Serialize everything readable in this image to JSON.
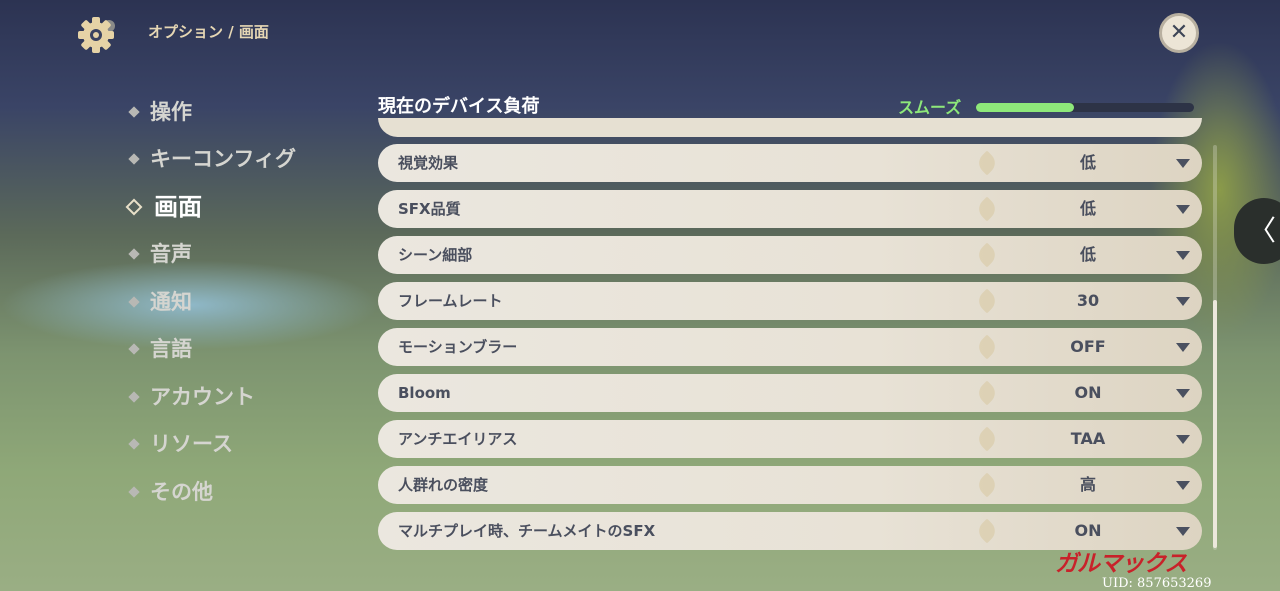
{
  "header": {
    "breadcrumb": "オプション / 画面",
    "close_icon": "close-icon",
    "settings_icon": "gear-icon"
  },
  "sidebar": {
    "items": [
      {
        "label": "操作"
      },
      {
        "label": "キーコンフィグ"
      },
      {
        "label": "画面",
        "active": true
      },
      {
        "label": "音声"
      },
      {
        "label": "通知"
      },
      {
        "label": "言語"
      },
      {
        "label": "アカウント"
      },
      {
        "label": "リソース"
      },
      {
        "label": "その他"
      }
    ]
  },
  "device_load": {
    "label": "現在のデバイス負荷",
    "status": "スムーズ",
    "level": 0.45,
    "color": "#8ee87a"
  },
  "settings": [
    {
      "label": "視覚効果",
      "value": "低"
    },
    {
      "label": "SFX品質",
      "value": "低"
    },
    {
      "label": "シーン細部",
      "value": "低"
    },
    {
      "label": "フレームレート",
      "value": "30"
    },
    {
      "label": "モーションブラー",
      "value": "OFF"
    },
    {
      "label": "Bloom",
      "value": "ON"
    },
    {
      "label": "アンチエイリアス",
      "value": "TAA"
    },
    {
      "label": "人群れの密度",
      "value": "高"
    },
    {
      "label": "マルチプレイ時、チームメイトのSFX",
      "value": "ON"
    }
  ],
  "watermark": {
    "logo": "ガルマックス",
    "uid": "UID: 857653269"
  }
}
